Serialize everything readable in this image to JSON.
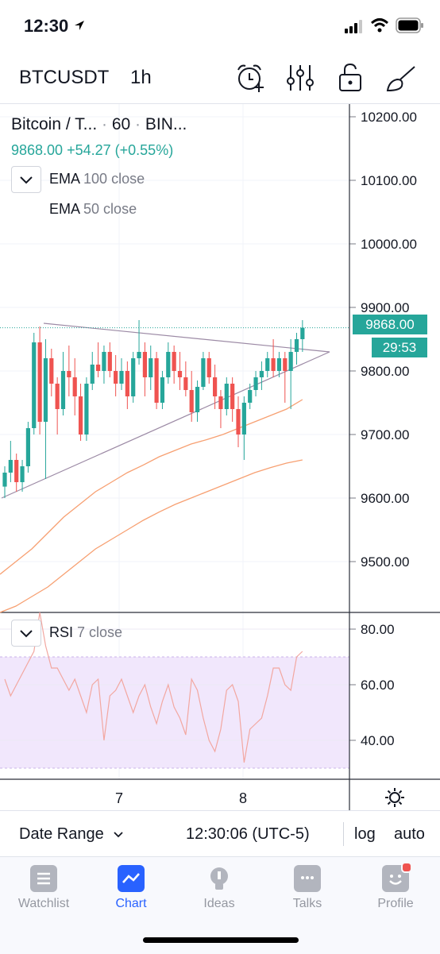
{
  "status": {
    "time": "12:30",
    "icons": [
      "location-arrow-icon",
      "signal-icon",
      "wifi-icon",
      "battery-icon"
    ]
  },
  "header": {
    "symbol": "BTCUSDT",
    "interval": "1h",
    "icons": [
      "alarm-add-icon",
      "indicators-settings-icon",
      "lock-icon",
      "drawing-brush-icon"
    ]
  },
  "legend": {
    "name": "Bitcoin / T...",
    "interval": "60",
    "exchange": "BIN...",
    "price": "9868.00",
    "change": "+54.27 (+0.55%)",
    "ema100": {
      "name": "EMA",
      "params": "100 close"
    },
    "ema50": {
      "name": "EMA",
      "params": "50 close"
    },
    "rsi": {
      "name": "RSI",
      "params": "7 close"
    }
  },
  "colors": {
    "up": "#26a69a",
    "down": "#ef5350",
    "ema": "#f7a072",
    "rsi_band": "#f1e7fc",
    "accent": "#2962ff"
  },
  "price_tag": {
    "price": "9868.00",
    "countdown": "29:53"
  },
  "bottombar": {
    "date_range": "Date Range",
    "clock": "12:30:06 (UTC-5)",
    "log": "log",
    "auto": "auto"
  },
  "tabs": [
    {
      "label": "Watchlist",
      "icon": "list-icon",
      "active": false
    },
    {
      "label": "Chart",
      "icon": "chart-icon",
      "active": true
    },
    {
      "label": "Ideas",
      "icon": "lightbulb-icon",
      "active": false
    },
    {
      "label": "Talks",
      "icon": "chat-bubble-icon",
      "active": false
    },
    {
      "label": "Profile",
      "icon": "smiley-icon",
      "active": false
    }
  ],
  "chart_data": {
    "type": "candlestick",
    "main_axis": {
      "ylim": [
        9420,
        10220
      ],
      "ticks": [
        "10200.00",
        "10100.00",
        "10000.00",
        "9900.00",
        "9800.00",
        "9700.00",
        "9600.00",
        "9500.00"
      ],
      "tick_values": [
        10200,
        10100,
        10000,
        9900,
        9800,
        9700,
        9600,
        9500
      ]
    },
    "rsi_axis": {
      "ylim": [
        26,
        86
      ],
      "ticks": [
        "80.00",
        "60.00",
        "40.00"
      ],
      "tick_values": [
        80,
        60,
        40
      ],
      "band": [
        30,
        70
      ]
    },
    "x_ticks": [
      "7",
      "8"
    ],
    "candles": [
      [
        9618,
        9650,
        9600,
        9640
      ],
      [
        9640,
        9690,
        9625,
        9660
      ],
      [
        9660,
        9670,
        9610,
        9625
      ],
      [
        9625,
        9660,
        9610,
        9650
      ],
      [
        9650,
        9720,
        9640,
        9710
      ],
      [
        9710,
        9860,
        9700,
        9845
      ],
      [
        9845,
        9870,
        9700,
        9720
      ],
      [
        9720,
        9850,
        9630,
        9820
      ],
      [
        9820,
        9835,
        9760,
        9780
      ],
      [
        9780,
        9790,
        9700,
        9740
      ],
      [
        9740,
        9830,
        9730,
        9800
      ],
      [
        9800,
        9840,
        9760,
        9790
      ],
      [
        9790,
        9820,
        9730,
        9760
      ],
      [
        9760,
        9780,
        9690,
        9700
      ],
      [
        9700,
        9790,
        9690,
        9780
      ],
      [
        9780,
        9830,
        9770,
        9810
      ],
      [
        9810,
        9845,
        9790,
        9800
      ],
      [
        9800,
        9840,
        9780,
        9830
      ],
      [
        9830,
        9845,
        9790,
        9800
      ],
      [
        9800,
        9825,
        9760,
        9780
      ],
      [
        9780,
        9820,
        9770,
        9800
      ],
      [
        9800,
        9815,
        9740,
        9760
      ],
      [
        9760,
        9830,
        9750,
        9820
      ],
      [
        9820,
        9880,
        9810,
        9830
      ],
      [
        9830,
        9845,
        9760,
        9790
      ],
      [
        9790,
        9840,
        9770,
        9820
      ],
      [
        9820,
        9830,
        9740,
        9750
      ],
      [
        9750,
        9800,
        9740,
        9790
      ],
      [
        9790,
        9845,
        9780,
        9830
      ],
      [
        9830,
        9840,
        9780,
        9800
      ],
      [
        9800,
        9830,
        9770,
        9790
      ],
      [
        9790,
        9815,
        9760,
        9770
      ],
      [
        9770,
        9800,
        9720,
        9735
      ],
      [
        9735,
        9785,
        9720,
        9775
      ],
      [
        9775,
        9830,
        9770,
        9820
      ],
      [
        9820,
        9830,
        9780,
        9790
      ],
      [
        9790,
        9810,
        9740,
        9760
      ],
      [
        9760,
        9770,
        9710,
        9740
      ],
      [
        9740,
        9790,
        9730,
        9780
      ],
      [
        9780,
        9790,
        9720,
        9740
      ],
      [
        9740,
        9760,
        9680,
        9700
      ],
      [
        9700,
        9760,
        9660,
        9750
      ],
      [
        9750,
        9780,
        9740,
        9770
      ],
      [
        9770,
        9800,
        9760,
        9790
      ],
      [
        9790,
        9815,
        9770,
        9800
      ],
      [
        9800,
        9830,
        9790,
        9820
      ],
      [
        9820,
        9850,
        9790,
        9800
      ],
      [
        9800,
        9830,
        9790,
        9820
      ],
      [
        9820,
        9830,
        9750,
        9800
      ],
      [
        9800,
        9850,
        9740,
        9830
      ],
      [
        9830,
        9860,
        9810,
        9850
      ],
      [
        9850,
        9880,
        9830,
        9868
      ]
    ],
    "ema100": [
      9420,
      9430,
      9445,
      9460,
      9480,
      9500,
      9520,
      9535,
      9550,
      9565,
      9578,
      9590,
      9600,
      9610,
      9620,
      9630,
      9640,
      9648,
      9655,
      9660
    ],
    "ema50": [
      9480,
      9500,
      9520,
      9545,
      9570,
      9590,
      9610,
      9625,
      9640,
      9652,
      9665,
      9675,
      9685,
      9692,
      9700,
      9710,
      9720,
      9730,
      9740,
      9755
    ],
    "rsi": [
      62,
      56,
      60,
      64,
      68,
      72,
      86,
      74,
      66,
      66,
      62,
      58,
      62,
      56,
      50,
      60,
      62,
      40,
      56,
      58,
      62,
      56,
      50,
      56,
      60,
      52,
      46,
      54,
      60,
      52,
      48,
      42,
      62,
      58,
      48,
      40,
      36,
      44,
      58,
      60,
      54,
      32,
      44,
      46,
      48,
      56,
      66,
      66,
      60,
      58,
      70,
      72
    ]
  }
}
